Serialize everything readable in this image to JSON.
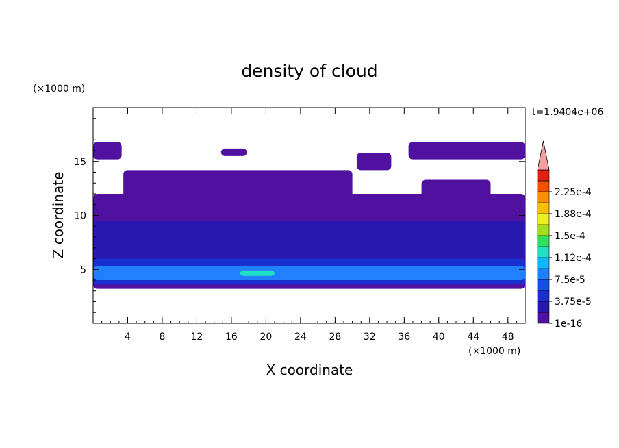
{
  "chart_data": {
    "type": "heatmap",
    "title": "density of cloud",
    "xlabel": "X coordinate",
    "ylabel": "Z coordinate",
    "x_unit": "(×1000 m)",
    "y_unit": "(×1000 m)",
    "time_label": "t=1.9404e+06",
    "xlim": [
      0,
      50
    ],
    "ylim": [
      0,
      20
    ],
    "x_ticks": [
      4,
      8,
      12,
      16,
      20,
      24,
      28,
      32,
      36,
      40,
      44,
      48
    ],
    "y_ticks": [
      5,
      10,
      15
    ],
    "x_minor_step": 1,
    "y_minor_step": 1,
    "colorbar": {
      "levels": [
        1e-16,
        1.875e-05,
        3.75e-05,
        5.625e-05,
        7.5e-05,
        9.375e-05,
        0.0001125,
        0.00013125,
        0.00015,
        0.00016875,
        0.0001875,
        0.00020625,
        0.000225,
        0.00024375
      ],
      "labels": [
        "1e-16",
        "3.75e-5",
        "7.5e-5",
        "1.12e-4",
        "1.5e-4",
        "1.88e-4",
        "2.25e-4"
      ],
      "label_values": [
        1e-16,
        3.75e-05,
        7.5e-05,
        0.0001125,
        0.00015,
        0.0001875,
        0.000225
      ],
      "colors": [
        "#5010a0",
        "#2818b0",
        "#1830d0",
        "#1050e8",
        "#2080ff",
        "#10b8ff",
        "#20e0c8",
        "#30e060",
        "#a0e020",
        "#f0f020",
        "#f8c000",
        "#f89000",
        "#f05000",
        "#e02010"
      ],
      "extend_max_color": "#f4a0a0",
      "extend": "max"
    },
    "regions": [
      {
        "level_index": 0,
        "z_range": [
          3.2,
          12.0
        ],
        "x_range": [
          0,
          50
        ],
        "note": "main cloud layer"
      },
      {
        "level_index": 0,
        "z_range": [
          11.5,
          14.2
        ],
        "x_range": [
          3.5,
          30
        ],
        "note": "upper arch"
      },
      {
        "level_index": 0,
        "z_range": [
          11.5,
          13.3
        ],
        "x_range": [
          38,
          46
        ],
        "note": "upper right lobe"
      },
      {
        "level_index": 0,
        "z_range": [
          15.2,
          16.8
        ],
        "x_range": [
          0,
          3.3
        ],
        "note": "top left patch"
      },
      {
        "level_index": 0,
        "z_range": [
          15.5,
          16.2
        ],
        "x_range": [
          14.8,
          17.8
        ],
        "note": "small top patch"
      },
      {
        "level_index": 0,
        "z_range": [
          14.2,
          15.8
        ],
        "x_range": [
          30.5,
          34.5
        ],
        "note": "top middle patch"
      },
      {
        "level_index": 0,
        "z_range": [
          15.2,
          16.8
        ],
        "x_range": [
          36.5,
          50
        ],
        "note": "top right band"
      },
      {
        "level_index": 1,
        "z_range": [
          6.0,
          9.5
        ],
        "x_range": [
          0,
          50
        ],
        "note": "darker inner layer"
      },
      {
        "level_index": 2,
        "z_range": [
          3.6,
          6.0
        ],
        "x_range": [
          0,
          50
        ],
        "note": "base high-density layer"
      },
      {
        "level_index": 4,
        "z_range": [
          4.0,
          5.3
        ],
        "x_range": [
          0,
          50
        ],
        "note": "bright blue band"
      },
      {
        "level_index": 6,
        "z_range": [
          4.4,
          4.9
        ],
        "x_range": [
          17,
          21
        ],
        "note": "peak density"
      }
    ]
  }
}
